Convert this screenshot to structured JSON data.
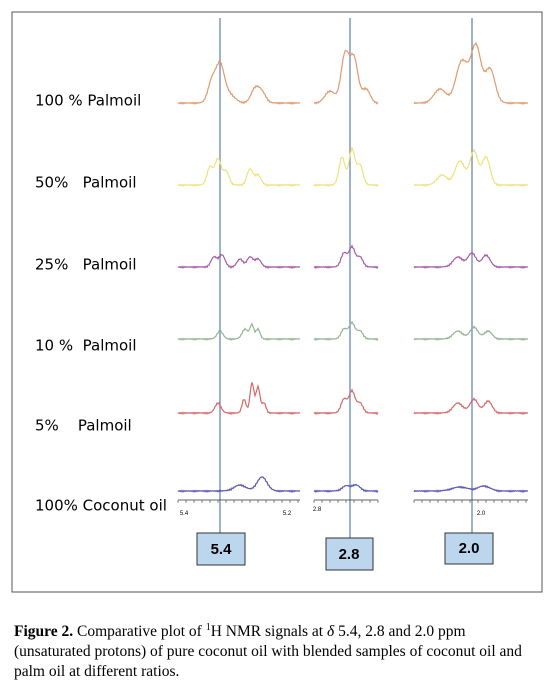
{
  "row_labels": [
    "100 % Palmoil",
    "50%   Palmoil",
    "25%   Palmoil",
    "10 %  Palmoil",
    "5%    Palmoil",
    "100% Coconut oil"
  ],
  "peak_labels": [
    "5.4",
    "2.8",
    "2.0"
  ],
  "axis_labels": [
    "5.4",
    "5.2",
    "2.8",
    "2.0"
  ],
  "caption": {
    "label": "Figure 2.",
    "text_1": " Comparative plot of ",
    "superscript": "1",
    "text_2": "H NMR signals at ",
    "delta": "δ",
    "text_3": " 5.4, 2.8 and 2.0 ppm (unsaturated protons) of pure coconut oil with blended samples of coconut oil and palm oil at different ratios."
  }
}
